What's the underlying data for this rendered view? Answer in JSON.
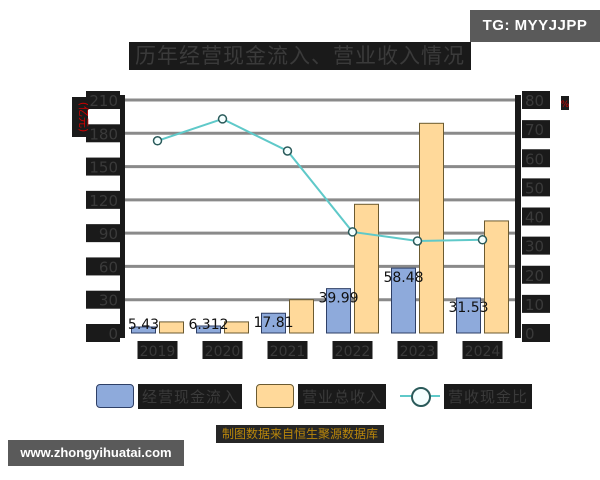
{
  "title": "历年经营现金流入、营业收入情况",
  "watermarks": {
    "telegram": "TG: MYYJJPP",
    "website": "www.zhongyihuatai.com"
  },
  "footer": "制图数据来自恒生聚源数据库",
  "colors": {
    "cash_inflow": "#8eaadb",
    "revenue": "#ffd99a",
    "ratio_line": "#5fc9c9",
    "unit_label": "#cc0000",
    "footer_text": "#b8860b"
  },
  "axes": {
    "left_unit": "(亿元)",
    "right_unit": "%",
    "left_ticks": [
      "0",
      "30",
      "60",
      "90",
      "120",
      "150",
      "180",
      "210"
    ],
    "right_ticks": [
      "0",
      "10",
      "20",
      "30",
      "40",
      "50",
      "60",
      "70",
      "80"
    ]
  },
  "legend": [
    {
      "label": "经营现金流入",
      "type": "bar",
      "color": "#8eaadb"
    },
    {
      "label": "营业总收入",
      "type": "bar",
      "color": "#ffd99a"
    },
    {
      "label": "营收现金比",
      "type": "line",
      "color": "#5fc9c9"
    }
  ],
  "chart_data": {
    "type": "bar",
    "title": "历年经营现金流入、营业收入情况",
    "categories": [
      "2019",
      "2020",
      "2021",
      "2022",
      "2023",
      "2024"
    ],
    "series": [
      {
        "name": "经营现金流入",
        "type": "bar",
        "axis": "left",
        "values": [
          5.43,
          6.312,
          17.81,
          39.99,
          58.48,
          31.53
        ],
        "labels": [
          "5.43",
          "6.312",
          "17.81",
          "39.99",
          "58.48",
          "31.53"
        ]
      },
      {
        "name": "营业总收入",
        "type": "bar",
        "axis": "left",
        "values": [
          10,
          10,
          30,
          116,
          189,
          101
        ]
      },
      {
        "name": "营收现金比",
        "type": "line",
        "axis": "right",
        "values": [
          66,
          73.5,
          62.5,
          34.7,
          31.6,
          32.0
        ]
      }
    ],
    "xlabel": "",
    "ylabel": "(亿元)",
    "y2label": "%",
    "ylim": [
      0,
      210
    ],
    "y2lim": [
      0,
      80
    ],
    "grid": true,
    "legend_position": "bottom"
  }
}
